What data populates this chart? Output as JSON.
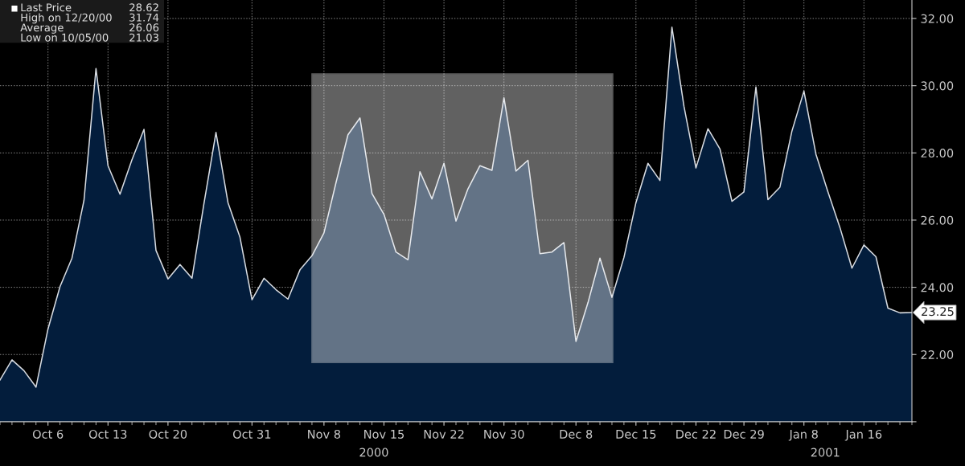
{
  "chart_data": {
    "type": "area",
    "categories": [
      null,
      null,
      null,
      null,
      "Oct 6",
      null,
      null,
      null,
      null,
      "Oct 13",
      null,
      null,
      null,
      null,
      "Oct 20",
      null,
      null,
      null,
      null,
      null,
      null,
      "Oct 31",
      null,
      null,
      null,
      null,
      null,
      "Nov 8",
      null,
      null,
      null,
      null,
      "Nov 15",
      null,
      null,
      null,
      null,
      "Nov 22",
      null,
      null,
      null,
      null,
      "Nov 30",
      null,
      null,
      null,
      null,
      null,
      "Dec 8",
      null,
      null,
      null,
      null,
      "Dec 15",
      null,
      null,
      null,
      null,
      "Dec 22",
      null,
      null,
      null,
      "Dec 29",
      null,
      null,
      null,
      null,
      "Jan 8",
      null,
      null,
      null,
      null,
      "Jan 16",
      null,
      null,
      null,
      null
    ],
    "series": [
      {
        "color": "#031d3c",
        "values": [
          21.24,
          21.84,
          21.52,
          21.03,
          22.76,
          24.02,
          24.87,
          26.59,
          30.51,
          27.62,
          26.77,
          27.8,
          28.7,
          25.1,
          24.25,
          24.68,
          24.27,
          26.5,
          28.61,
          26.52,
          25.49,
          23.63,
          24.27,
          23.93,
          23.65,
          24.52,
          24.94,
          25.62,
          27.11,
          28.54,
          29.04,
          26.79,
          26.17,
          25.05,
          24.82,
          27.44,
          26.63,
          27.69,
          25.97,
          26.93,
          27.62,
          27.48,
          29.64,
          27.46,
          27.78,
          25.0,
          25.05,
          25.33,
          22.39,
          23.54,
          24.87,
          23.7,
          24.89,
          26.52,
          27.69,
          27.18,
          31.74,
          29.39,
          27.55,
          28.72,
          28.12,
          26.56,
          26.84,
          29.96,
          26.61,
          26.98,
          28.65,
          29.84,
          27.96,
          26.84,
          25.78,
          24.57,
          25.26,
          24.91,
          23.38,
          23.24,
          23.25
        ]
      }
    ],
    "ylim": [
      20,
      32.55
    ],
    "yticks": [
      {
        "value": 20,
        "label": null
      },
      {
        "value": 22,
        "label": "22.00"
      },
      {
        "value": 24,
        "label": "24.00"
      },
      {
        "value": 26,
        "label": "26.00"
      },
      {
        "value": 28,
        "label": "28.00"
      },
      {
        "value": 30,
        "label": "30.00"
      },
      {
        "value": 32,
        "label": "32.00"
      }
    ],
    "grid": true,
    "annotations": [
      "Last Price 28.62",
      "High on 12/20/00 31.74",
      "Average 26.06",
      "Low on 10/05/00 21.03",
      "2000",
      "2001",
      "23.25"
    ]
  }
}
